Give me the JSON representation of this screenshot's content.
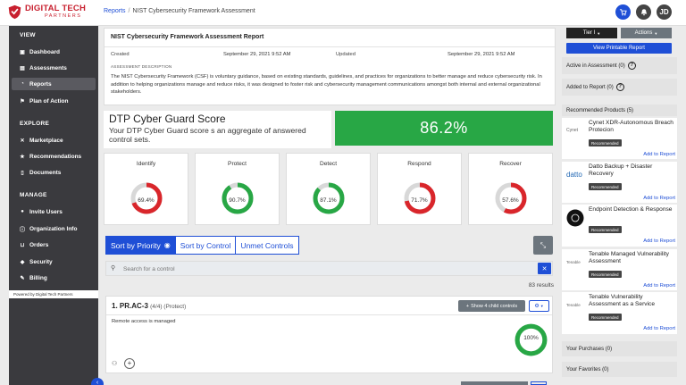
{
  "brand": {
    "name": "DIGITAL TECH",
    "sub": "PARTNERS"
  },
  "breadcrumb": {
    "parent": "Reports",
    "separator": "/",
    "current": "NIST Cybersecurity Framework Assessment"
  },
  "header": {
    "avatar_initials": "JD"
  },
  "sidebar": {
    "view_heading": "VIEW",
    "view_items": [
      "Dashboard",
      "Assessments",
      "Reports",
      "Plan of Action"
    ],
    "explore_heading": "EXPLORE",
    "explore_items": [
      "Marketplace",
      "Recommendations",
      "Documents"
    ],
    "manage_heading": "MANAGE",
    "manage_items": [
      "Invite Users",
      "Organization Info",
      "Orders",
      "Security",
      "Billing"
    ],
    "powered_by": "Powered by Digital Tech Partners"
  },
  "report": {
    "title": "NIST Cybersecurity Framework Assessment Report",
    "created_label": "Created",
    "created_value": "September 29, 2021 9:52 AM",
    "updated_label": "Updated",
    "updated_value": "September 29, 2021 9:52 AM",
    "description_heading": "ASSESSMENT DESCRIPTION",
    "description": "The NIST Cybersecurity Framework (CSF) is voluntary guidance, based on existing standards, guidelines, and practices for organizations to better manage and reduce cybersecurity risk. In addition to helping organizations manage and reduce risks, it was designed to foster risk and cybersecurity management communications amongst both internal and external organizational stakeholders."
  },
  "score": {
    "title": "DTP Cyber Guard Score",
    "subtitle": "Your DTP Cyber Guard score s an aggregate of answered control sets.",
    "value": "86.2%"
  },
  "metrics": [
    {
      "label": "Identify",
      "value": "69.4%",
      "fraction": 0.694,
      "color": "#d9262b"
    },
    {
      "label": "Protect",
      "value": "90.7%",
      "fraction": 0.907,
      "color": "#28a745"
    },
    {
      "label": "Detect",
      "value": "87.1%",
      "fraction": 0.871,
      "color": "#28a745"
    },
    {
      "label": "Respond",
      "value": "71.7%",
      "fraction": 0.717,
      "color": "#d9262b"
    },
    {
      "label": "Recover",
      "value": "57.6%",
      "fraction": 0.576,
      "color": "#d9262b"
    }
  ],
  "tabs": {
    "priority": "Sort by Priority",
    "control": "Sort by Control",
    "unmet": "Unmet Controls"
  },
  "search": {
    "placeholder": "Search for a control"
  },
  "results_count": "83 results",
  "control": {
    "id": "1. PR.AC-3",
    "sub": "(4/4) (Protect)",
    "children_button": "Show 4 child controls",
    "text": "Remote access is managed",
    "score": "100%",
    "fraction": 1.0
  },
  "right_panel": {
    "tier_button": "Tier I",
    "actions_button": "Actions",
    "printable_button": "View Printable Report",
    "active_label": "Active in Assessment (0)",
    "added_label": "Added to Report (0)",
    "recommended_label": "Recommended Products (5)",
    "products": [
      {
        "logo": "Cynet",
        "name": "Cynet XDR-Autonomous Breach Protecion",
        "badge": "Recommended",
        "add": "Add to Report"
      },
      {
        "logo": "datto",
        "name": "Datto Backup + Disaster Recovery",
        "badge": "Recommended",
        "add": "Add to Report"
      },
      {
        "logo": "",
        "name": "Endpoint Detection & Response",
        "badge": "Recommended",
        "add": "Add to Report"
      },
      {
        "logo": "Tenable",
        "name": "Tenable Managed Vulnerability Assessment",
        "badge": "Recommended",
        "add": "Add to Report"
      },
      {
        "logo": "Tenable",
        "name": "Tenable Vulnerability Assessment as a Service",
        "badge": "Recommended",
        "add": "Add to Report"
      }
    ],
    "purchases_label": "Your Purchases (0)",
    "favorites_label": "Your Favorites (0)"
  },
  "colors": {
    "accent": "#1f4fd6",
    "good": "#28a745",
    "bad": "#d9262b",
    "sidebar": "#3a3a3e"
  }
}
